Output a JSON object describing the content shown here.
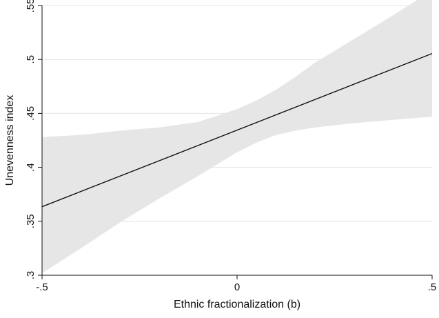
{
  "chart_data": {
    "type": "line",
    "title": "",
    "xlabel": "Ethnic fractionalization (b)",
    "ylabel": "Unevenness index",
    "xlim": [
      -0.5,
      0.5
    ],
    "ylim": [
      0.3,
      0.55
    ],
    "x_ticks": [
      {
        "value": -0.5,
        "label": "-.5"
      },
      {
        "value": 0,
        "label": "0"
      },
      {
        "value": 0.5,
        "label": ".5"
      }
    ],
    "y_ticks": [
      {
        "value": 0.3,
        "label": ".3"
      },
      {
        "value": 0.35,
        "label": ".35"
      },
      {
        "value": 0.4,
        "label": ".4"
      },
      {
        "value": 0.45,
        "label": ".45"
      },
      {
        "value": 0.5,
        "label": ".5"
      },
      {
        "value": 0.55,
        "label": ".55"
      }
    ],
    "grid": "horizontal",
    "line_color": "#111111",
    "band_color": "#e6e6e6",
    "series": [
      {
        "x": [
          -0.5,
          0.5
        ],
        "y": [
          0.3635,
          0.5055
        ]
      }
    ],
    "confidence_band": {
      "x": [
        -0.5,
        -0.4,
        -0.3,
        -0.2,
        -0.1,
        0.0,
        0.05,
        0.1,
        0.15,
        0.2,
        0.3,
        0.4,
        0.5
      ],
      "lower": [
        0.302,
        0.325,
        0.349,
        0.371,
        0.392,
        0.414,
        0.423,
        0.43,
        0.434,
        0.437,
        0.441,
        0.444,
        0.447
      ],
      "upper": [
        0.428,
        0.43,
        0.434,
        0.437,
        0.442,
        0.454,
        0.462,
        0.472,
        0.484,
        0.497,
        0.519,
        0.541,
        0.564
      ]
    }
  }
}
